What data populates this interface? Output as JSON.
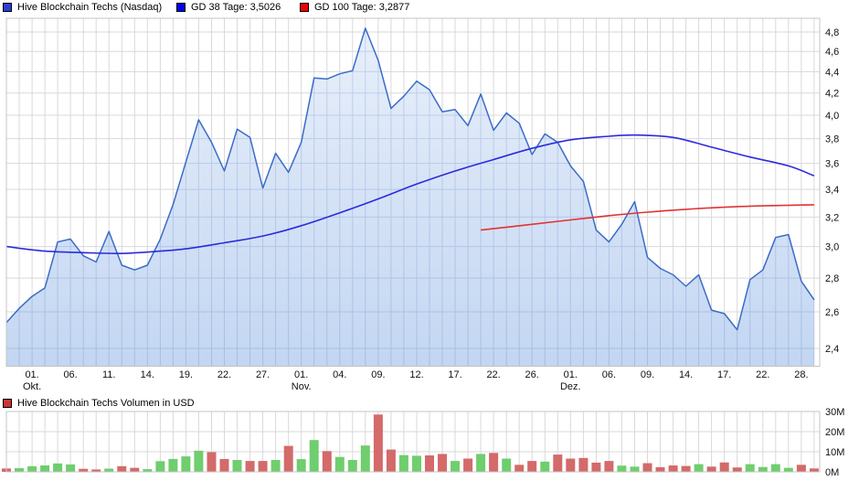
{
  "legend": {
    "price": "Hive Blockchain Techs (Nasdaq)",
    "gd38": "GD 38 Tage: 3,5026",
    "gd100": "GD 100 Tage: 3,2877",
    "volume": "Hive Blockchain Techs Volumen in USD"
  },
  "colors": {
    "price_line": "#3a6cc8",
    "area_top": "#e9f0fa",
    "area_bottom": "#c3d6f2",
    "grid_in_area_top": "#c6d4ed",
    "grid_in_area_bottom": "#a6bde2",
    "gd38_line": "#2b2bdd",
    "gd100_line": "#e23333",
    "vol_up": "#6fce6e",
    "vol_down": "#d46a6a",
    "grid": "#d9d9d9",
    "border": "#c4c4c4",
    "swatch_price": "#2d3fd0",
    "swatch_gd38": "#0202ef",
    "swatch_gd100": "#ef0202",
    "swatch_volume": "#cc3333",
    "text": "#111111"
  },
  "chart_data": [
    {
      "type": "area",
      "title": "Hive Blockchain Techs (Nasdaq)",
      "yscale": "log",
      "ylim": [
        2.31,
        4.95
      ],
      "y_ticks": [
        {
          "v": 2.4,
          "label": "2,4"
        },
        {
          "v": 2.6,
          "label": "2,6"
        },
        {
          "v": 2.8,
          "label": "2,8"
        },
        {
          "v": 3.0,
          "label": "3,0"
        },
        {
          "v": 3.2,
          "label": "3,2"
        },
        {
          "v": 3.4,
          "label": "3,4"
        },
        {
          "v": 3.6,
          "label": "3,6"
        },
        {
          "v": 3.8,
          "label": "3,8"
        },
        {
          "v": 4.0,
          "label": "4,0"
        },
        {
          "v": 4.2,
          "label": "4,2"
        },
        {
          "v": 4.4,
          "label": "4,4"
        },
        {
          "v": 4.6,
          "label": "4,6"
        },
        {
          "v": 4.8,
          "label": "4,8"
        }
      ],
      "x_ticks": [
        {
          "i": 2,
          "day": "01.",
          "month": "Okt."
        },
        {
          "i": 5,
          "day": "06."
        },
        {
          "i": 8,
          "day": "11."
        },
        {
          "i": 11,
          "day": "14."
        },
        {
          "i": 14,
          "day": "19."
        },
        {
          "i": 17,
          "day": "22."
        },
        {
          "i": 20,
          "day": "27."
        },
        {
          "i": 23,
          "day": "01.",
          "month": "Nov."
        },
        {
          "i": 26,
          "day": "04."
        },
        {
          "i": 29,
          "day": "09."
        },
        {
          "i": 32,
          "day": "12."
        },
        {
          "i": 35,
          "day": "17."
        },
        {
          "i": 38,
          "day": "22."
        },
        {
          "i": 41,
          "day": "26."
        },
        {
          "i": 44,
          "day": "01.",
          "month": "Dez."
        },
        {
          "i": 47,
          "day": "06."
        },
        {
          "i": 50,
          "day": "09."
        },
        {
          "i": 53,
          "day": "14."
        },
        {
          "i": 56,
          "day": "17."
        },
        {
          "i": 59,
          "day": "22."
        },
        {
          "i": 62,
          "day": "28."
        }
      ],
      "series": [
        {
          "name": "Hive Blockchain Techs (Nasdaq)",
          "type": "area",
          "values": [
            2.54,
            2.62,
            2.69,
            2.74,
            3.03,
            3.05,
            2.94,
            2.9,
            3.1,
            2.88,
            2.85,
            2.88,
            3.05,
            3.29,
            3.61,
            3.96,
            3.77,
            3.54,
            3.88,
            3.81,
            3.41,
            3.68,
            3.53,
            3.77,
            4.34,
            4.33,
            4.38,
            4.41,
            4.84,
            4.51,
            4.06,
            4.17,
            4.31,
            4.23,
            4.03,
            4.05,
            3.91,
            4.19,
            3.87,
            4.02,
            3.93,
            3.67,
            3.84,
            3.77,
            3.58,
            3.46,
            3.11,
            3.03,
            3.15,
            3.31,
            2.93,
            2.86,
            2.82,
            2.75,
            2.82,
            2.61,
            2.59,
            2.5,
            2.79,
            2.85,
            3.06,
            3.08,
            2.78,
            2.67
          ]
        },
        {
          "name": "GD 38 Tage",
          "type": "line",
          "current": "3,5026",
          "points": [
            [
              0,
              3.0
            ],
            [
              3,
              2.97
            ],
            [
              6,
              2.96
            ],
            [
              9,
              2.955
            ],
            [
              12,
              2.97
            ],
            [
              14,
              2.985
            ],
            [
              17,
              3.025
            ],
            [
              20,
              3.07
            ],
            [
              23,
              3.14
            ],
            [
              26,
              3.23
            ],
            [
              29,
              3.33
            ],
            [
              32,
              3.44
            ],
            [
              35,
              3.54
            ],
            [
              38,
              3.63
            ],
            [
              41,
              3.72
            ],
            [
              44,
              3.79
            ],
            [
              47,
              3.82
            ],
            [
              49,
              3.83
            ],
            [
              52,
              3.81
            ],
            [
              55,
              3.73
            ],
            [
              58,
              3.65
            ],
            [
              61,
              3.58
            ],
            [
              63,
              3.5026
            ]
          ]
        },
        {
          "name": "GD 100 Tage",
          "type": "line",
          "current": "3,2877",
          "points": [
            [
              37,
              3.11
            ],
            [
              41,
              3.15
            ],
            [
              44,
              3.18
            ],
            [
              47,
              3.21
            ],
            [
              50,
              3.235
            ],
            [
              53,
              3.255
            ],
            [
              56,
              3.27
            ],
            [
              59,
              3.28
            ],
            [
              63,
              3.2877
            ]
          ]
        }
      ]
    },
    {
      "type": "bar",
      "title": "Hive Blockchain Techs Volumen in USD",
      "unit": "M",
      "y_ticks": [
        {
          "v": 0,
          "label": "0M"
        },
        {
          "v": 10,
          "label": "10M"
        },
        {
          "v": 20,
          "label": "20M"
        },
        {
          "v": 30,
          "label": "30M"
        }
      ],
      "values": [
        1.7,
        1.8,
        2.8,
        3.2,
        4.2,
        3.7,
        1.5,
        1.2,
        1.6,
        2.8,
        2.0,
        1.3,
        5.3,
        6.4,
        7.7,
        10.5,
        9.8,
        6.4,
        5.9,
        5.4,
        5.4,
        5.9,
        12.9,
        6.3,
        15.8,
        10.3,
        7.4,
        5.9,
        13.1,
        28.5,
        11.1,
        8.3,
        8.0,
        8.2,
        8.9,
        5.4,
        6.6,
        8.9,
        9.4,
        6.6,
        3.5,
        5.4,
        5.1,
        8.6,
        6.6,
        6.9,
        4.6,
        5.4,
        3.1,
        2.6,
        4.3,
        2.3,
        3.2,
        2.9,
        3.8,
        2.6,
        4.7,
        2.2,
        3.8,
        2.4,
        3.8,
        2.0,
        3.5,
        1.7
      ],
      "bar_colors": [
        "r",
        "g",
        "g",
        "g",
        "g",
        "g",
        "r",
        "r",
        "g",
        "r",
        "r",
        "g",
        "g",
        "g",
        "g",
        "g",
        "r",
        "r",
        "g",
        "r",
        "r",
        "g",
        "r",
        "g",
        "g",
        "r",
        "g",
        "g",
        "g",
        "r",
        "r",
        "g",
        "g",
        "r",
        "r",
        "g",
        "r",
        "g",
        "r",
        "g",
        "r",
        "r",
        "g",
        "r",
        "r",
        "r",
        "r",
        "r",
        "g",
        "g",
        "r",
        "r",
        "r",
        "r",
        "g",
        "r",
        "r",
        "r",
        "g",
        "g",
        "g",
        "g",
        "r",
        "r"
      ]
    }
  ]
}
